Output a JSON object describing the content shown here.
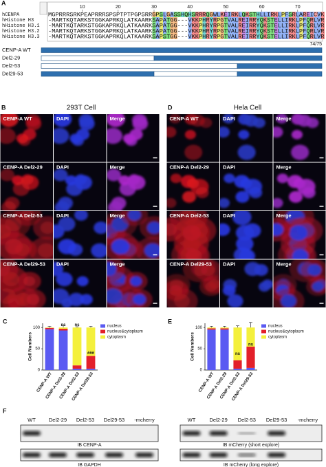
{
  "panels": {
    "A": {
      "label": "A",
      "ruler": [
        10,
        20,
        30,
        40,
        50,
        60,
        70
      ],
      "sequences": [
        {
          "name": "hCENPA",
          "seq": "MGPRRRSRKPEAPRRRSPSPTPTPGPSRRGPSLGASSHQHSRRRQGWLKEIRKLQKSTHLLIRKLPFSRLAREICVK"
        },
        {
          "name": "hHistone H3",
          "seq": "-MARTKQTARKSTGGKAPRKQLATKAARKSAPATGG---VKKPHRYRPGTVALREIRRYQKSTELLIRKLPFQRLVR"
        },
        {
          "name": "hHistone H3.1",
          "seq": "-MARTKQTARKSTGGKAPRKQLATKAARKSAPATGG---VKKPHRYRPGTVALREIRRYQKSTELLIRKLPFQRLVR"
        },
        {
          "name": "hHistone H3.2",
          "seq": "-MARTKQTARKSTGGKAPRKQLATKAARKSAPATGG---VKKPHRYRPGTVALREIRRYQKSTELLIRKLPFQRLVR"
        },
        {
          "name": "hHistone H3.3",
          "seq": "-MARTKQTARKSTGGKAPRKQLATKAARKSAPSTGG---VKKPHRYRPGTVALREIRRYQKSTELLIRKLPFQRLVR"
        }
      ],
      "length_label": "74/75",
      "constructs": [
        "CENP-A WT",
        "Del2-29",
        "Del2-53",
        "Del29-53"
      ]
    },
    "B": {
      "label": "B",
      "title": "293T Cell",
      "tiles": [
        [
          "CENP-A WT",
          "DAPI",
          "Merge"
        ],
        [
          "CENP-A  Del2-29",
          "DAPI",
          "Merge"
        ],
        [
          "CENP-A  Del2-53",
          "DAPI",
          "Merge"
        ],
        [
          "CENP-A  Del29-53",
          "DAPI",
          "Merge"
        ]
      ]
    },
    "C": {
      "label": "C",
      "type": "bar",
      "stacked": true,
      "ylabel": "Cell Numbers",
      "categories": [
        "CENP-A WT",
        "CENP-A Del2-29",
        "CENP-A Del2-53",
        "CENP-A Del29-53"
      ],
      "series": [
        {
          "name": "nucleus",
          "color": "#5a5af2",
          "values": [
            96,
            93,
            3,
            3
          ]
        },
        {
          "name": "nucleus&cytoplasm",
          "color": "#e3202a",
          "values": [
            3,
            4,
            8,
            30
          ]
        },
        {
          "name": "cytoplasm",
          "color": "#f4f03c",
          "values": [
            1,
            3,
            89,
            67
          ]
        }
      ],
      "errors": [
        3,
        4,
        2,
        3
      ],
      "ylim": [
        0,
        110
      ],
      "yticks": [
        0,
        50,
        100
      ],
      "annotations": [
        "ns",
        "ns",
        "###"
      ]
    },
    "D": {
      "label": "D",
      "title": "Hela Cell",
      "tiles": [
        [
          "CENP-A WT",
          "DAPI",
          "Merge"
        ],
        [
          "CENP-A  Del2-29",
          "DAPI",
          "Merge"
        ],
        [
          "CENP-A  Del2-53",
          "DAPI",
          "Merge"
        ],
        [
          "CENP-A  Del29-53",
          "DAPI",
          "Merge"
        ]
      ]
    },
    "E": {
      "label": "E",
      "type": "bar",
      "stacked": true,
      "ylabel": "Cell Numbers",
      "categories": [
        "CENP-A WT",
        "CENP-A Del2-29",
        "CENP-A Del2-53",
        "CENP-A Del29-53"
      ],
      "series": [
        {
          "name": "nucleus",
          "color": "#5a5af2",
          "values": [
            95,
            95,
            3,
            5
          ]
        },
        {
          "name": "nucleus&cytoplasm",
          "color": "#e3202a",
          "values": [
            3,
            3,
            20,
            50
          ]
        },
        {
          "name": "cytoplasm",
          "color": "#f4f03c",
          "values": [
            2,
            2,
            77,
            45
          ]
        }
      ],
      "errors": [
        3,
        3,
        4,
        12
      ],
      "ylim": [
        0,
        110
      ],
      "yticks": [
        0,
        50,
        100
      ],
      "annotations": [
        "ns",
        "ns"
      ]
    },
    "F": {
      "label": "F",
      "left": {
        "lanes": [
          "WT",
          "Del2-29",
          "Del2-53",
          "Del29-53",
          "-mcherry"
        ],
        "blots": [
          "IB CENP-A",
          "IB GAPDH"
        ]
      },
      "right": {
        "lanes": [
          "WT",
          "Del2-29",
          "Del2-53",
          "Del29-53",
          "-mcherry"
        ],
        "blots": [
          "IB  mCherry (short explore)",
          "IB  mCherry (long explore)"
        ]
      }
    }
  }
}
